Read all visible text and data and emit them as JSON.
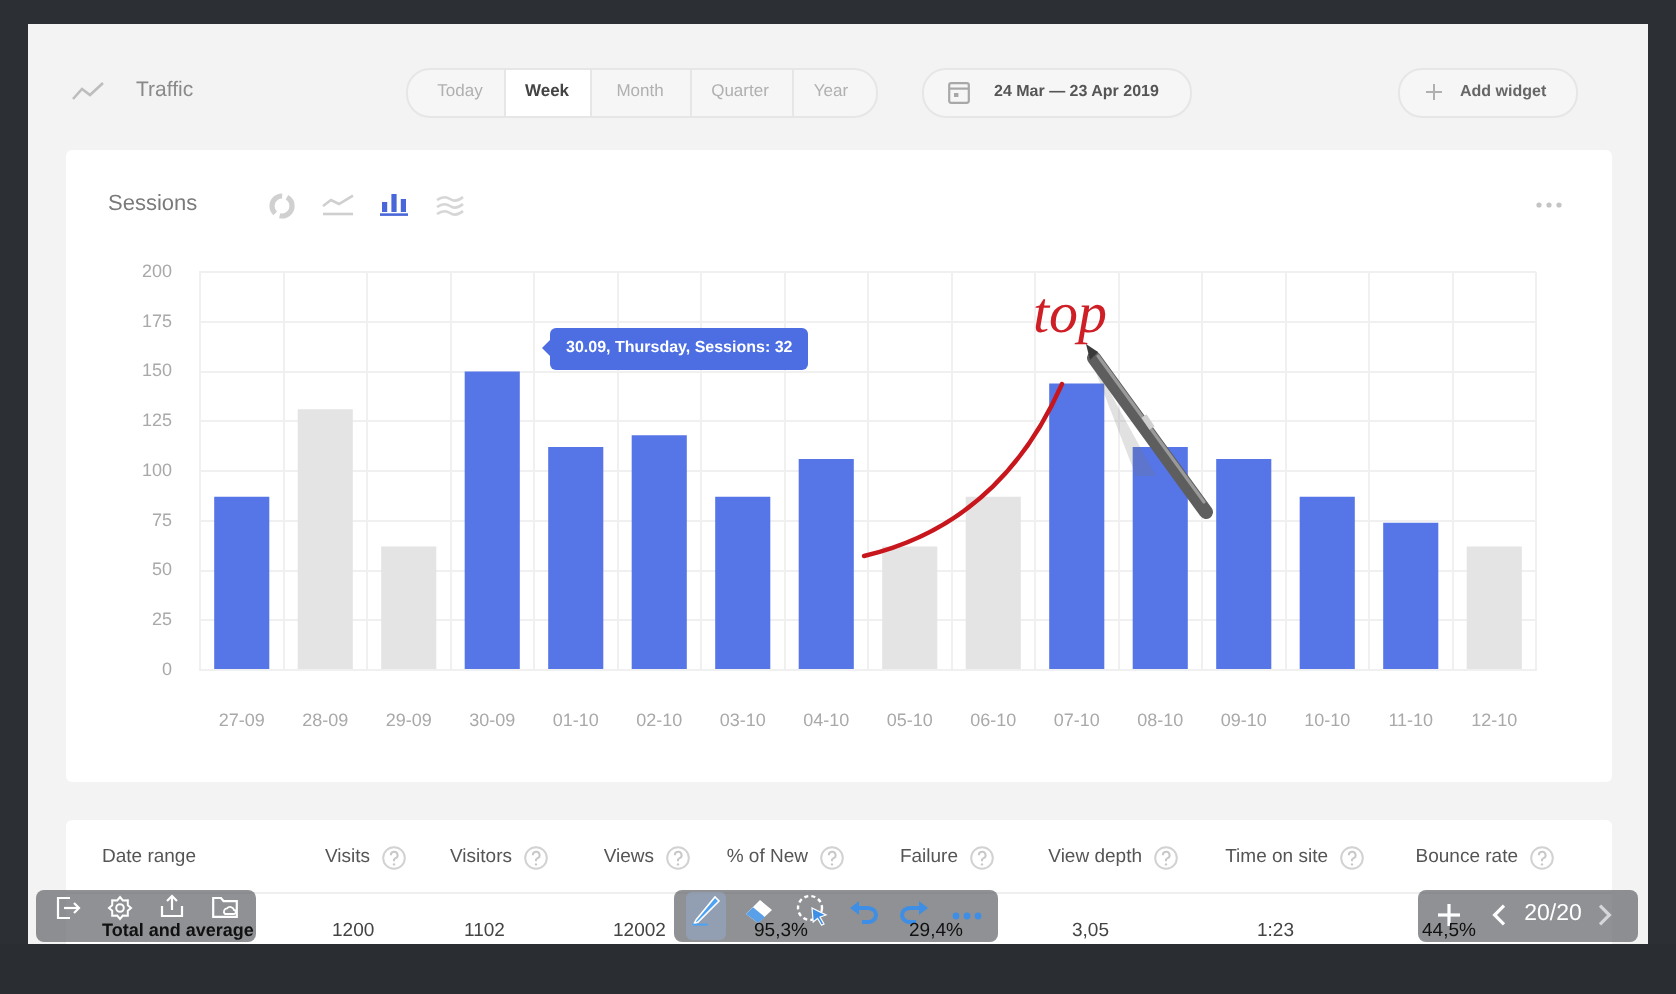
{
  "chart_data": {
    "type": "bar",
    "title": "Sessions",
    "categories": [
      "27-09",
      "28-09",
      "29-09",
      "30-09",
      "01-10",
      "02-10",
      "03-10",
      "04-10",
      "05-10",
      "06-10",
      "07-10",
      "08-10",
      "09-10",
      "10-10",
      "11-10",
      "12-10"
    ],
    "values": [
      87,
      131,
      62,
      150,
      112,
      118,
      87,
      106,
      62,
      87,
      144,
      112,
      106,
      87,
      74,
      62
    ],
    "colors": [
      "#5675e6",
      "#e4e4e4",
      "#e4e4e4",
      "#5675e6",
      "#5675e6",
      "#5675e6",
      "#5675e6",
      "#5675e6",
      "#e4e4e4",
      "#e4e4e4",
      "#5675e6",
      "#5675e6",
      "#5675e6",
      "#5675e6",
      "#5675e6",
      "#e4e4e4"
    ],
    "ylim": [
      0,
      200
    ],
    "yticks": [
      0,
      25,
      50,
      75,
      100,
      125,
      150,
      175,
      200
    ],
    "grid": true,
    "annotations": [
      "30.09, Thursday, Sessions: 32",
      "top",
      "Traffic",
      "Today",
      "Week",
      "Month",
      "Quarter",
      "Year",
      "24 Mar — 23 Apr 2019",
      "Add widget",
      "Date range",
      "Visits",
      "Visitors",
      "Views",
      "% of New",
      "Failure",
      "View depth",
      "Time on site",
      "Bounce rate",
      "Total and average",
      "1200",
      "1102",
      "12002",
      "95,3%",
      "29,4%",
      "3,05",
      "1:23",
      "44,5%",
      "20/20"
    ]
  }
}
